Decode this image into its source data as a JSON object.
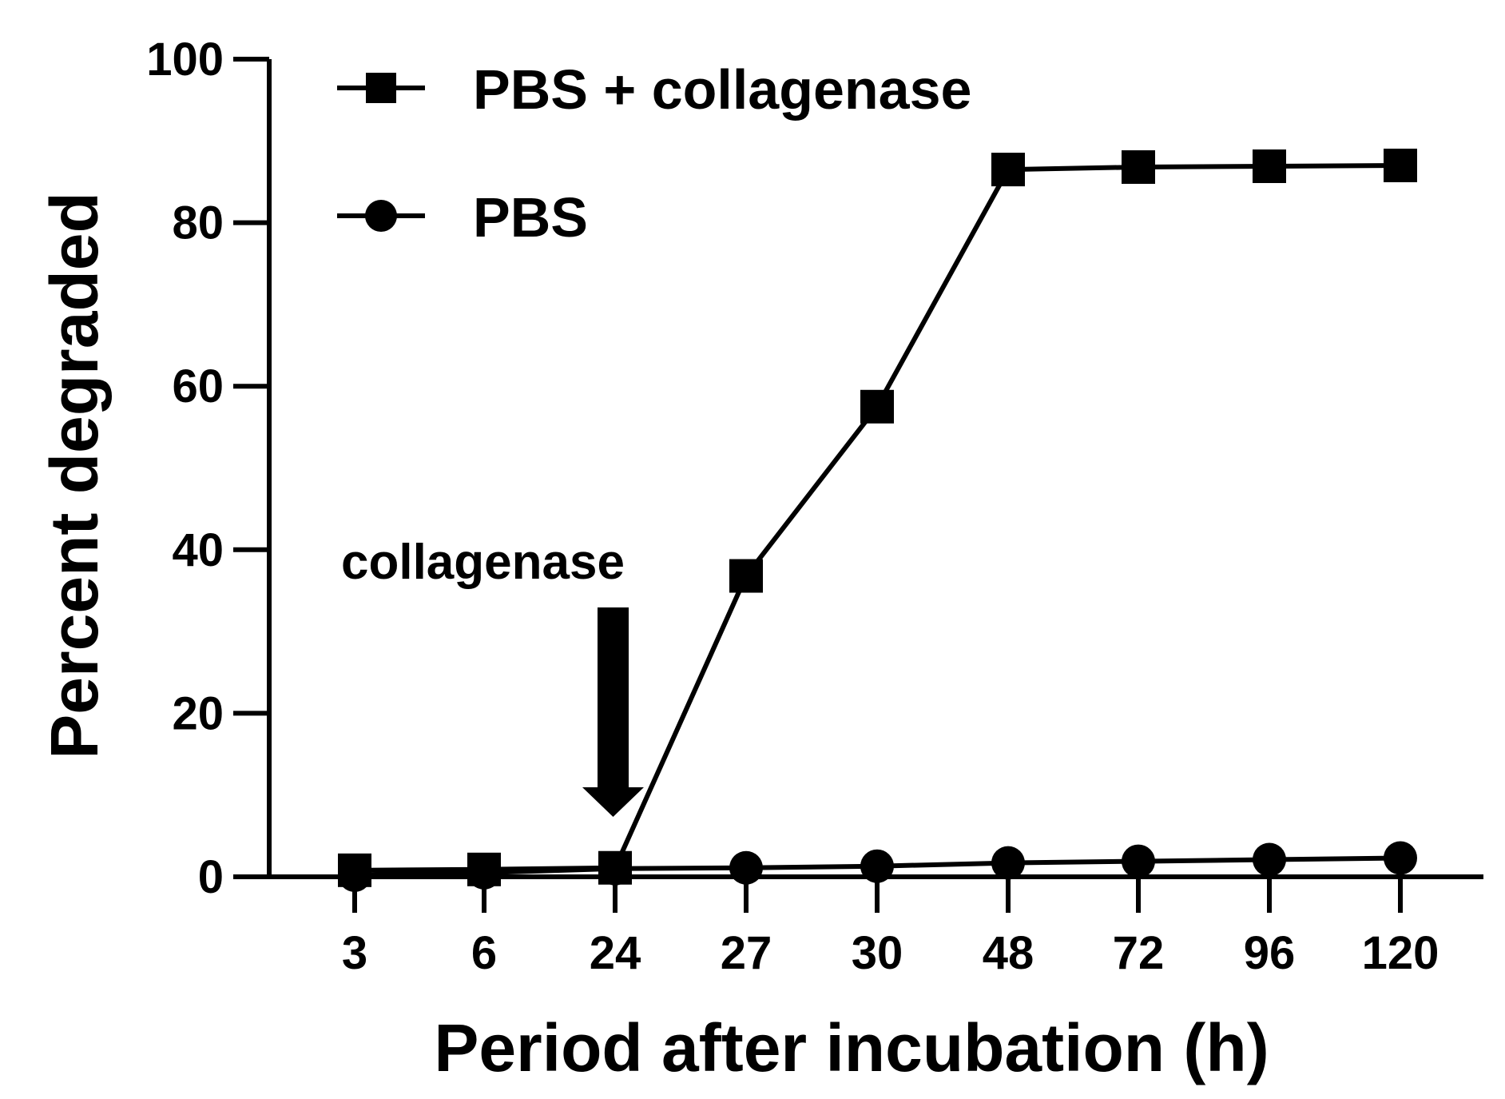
{
  "chart_data": {
    "type": "line",
    "title": "",
    "xlabel": "Period after incubation (h)",
    "ylabel": "Percent degraded",
    "categories": [
      "3",
      "6",
      "24",
      "27",
      "30",
      "48",
      "72",
      "96",
      "120"
    ],
    "yticks": [
      "0",
      "20",
      "40",
      "60",
      "80",
      "100"
    ],
    "ylim": [
      0,
      100
    ],
    "grid": false,
    "legend_position": "top-left",
    "series": [
      {
        "name": "PBS + collagenase",
        "marker": "square",
        "color": "#000000",
        "values": [
          0.8,
          0.9,
          1.1,
          36.8,
          57.5,
          86.5,
          86.8,
          86.9,
          87.0
        ]
      },
      {
        "name": "PBS",
        "marker": "circle",
        "color": "#000000",
        "values": [
          0.2,
          0.5,
          1.0,
          1.1,
          1.3,
          1.7,
          1.9,
          2.1,
          2.3
        ]
      }
    ],
    "annotations": [
      {
        "text": "collagenase",
        "arrow_at": "24"
      }
    ]
  }
}
